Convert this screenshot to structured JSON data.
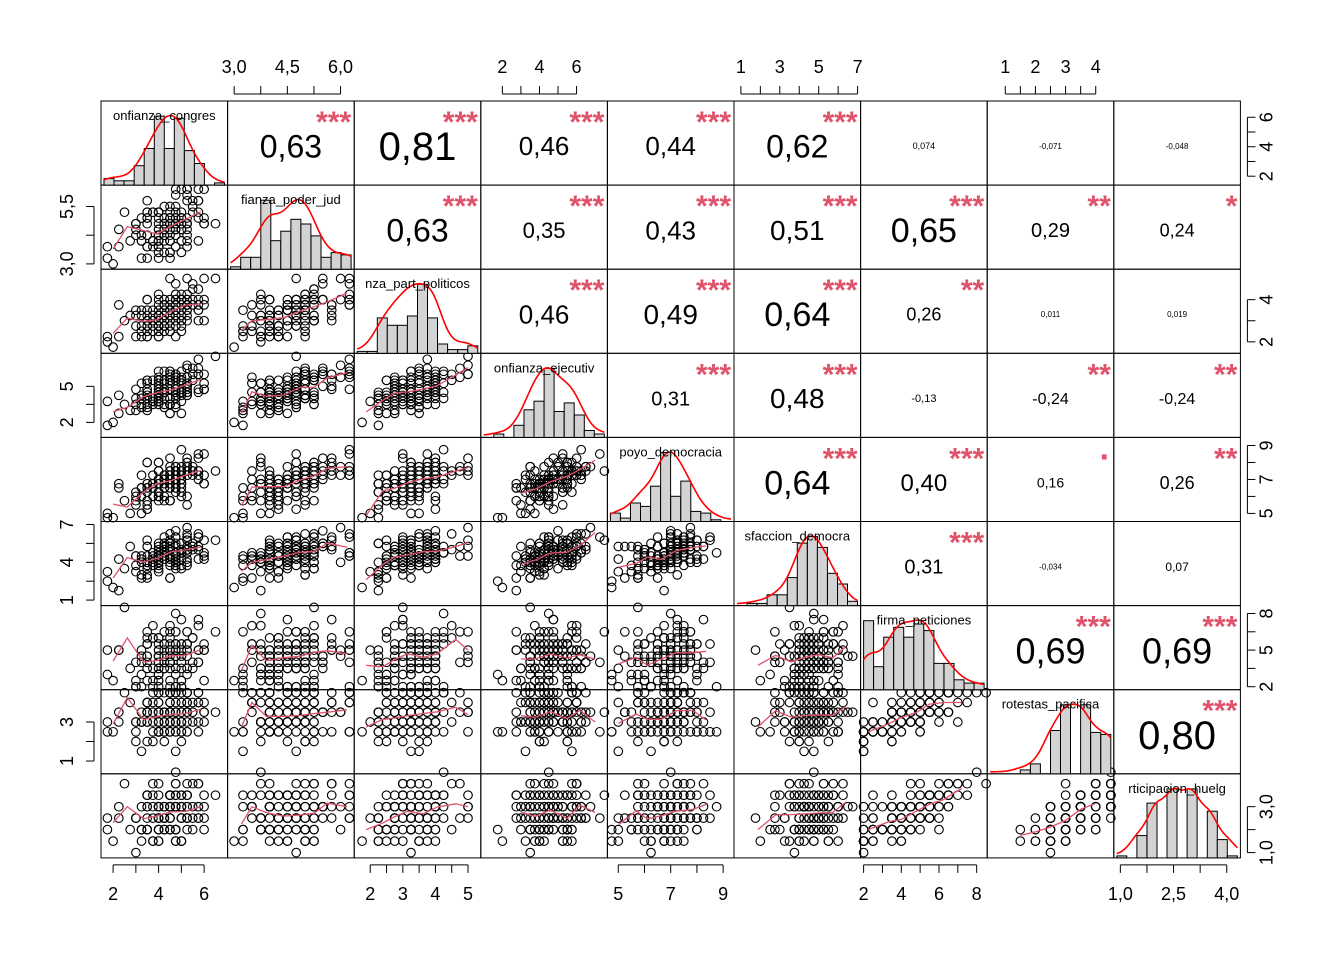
{
  "chart_data": {
    "type": "scatter-matrix",
    "variables": [
      "confianza_congreso",
      "confianza_poder_judicial",
      "confianza_partidos_politicos",
      "confianza_ejecutivo",
      "apoyo_democracia",
      "satisfaccion_democracia",
      "firma_peticiones",
      "protestas_pacificas",
      "participacion_huelgas"
    ],
    "diag_labels": [
      "onfianza_congres",
      "fianza_poder_jud",
      "nza_part_politicos",
      "onfianza_ejecutiv",
      "poyo_democracia",
      "sfaccion_democra",
      "firma_peticiones",
      "rotestas_pacifica",
      "rticipacion_huelg"
    ],
    "ranges": [
      [
        1.6,
        6.9
      ],
      [
        2.9,
        6.3
      ],
      [
        1.6,
        5.3
      ],
      [
        1.0,
        7.5
      ],
      [
        4.7,
        9.3
      ],
      [
        0.8,
        7.0
      ],
      [
        2.0,
        8.4
      ],
      [
        0.5,
        4.5
      ],
      [
        0.9,
        4.3
      ]
    ],
    "axis_ticks": {
      "top": [
        {
          "col": 1,
          "ticks": [
            "3,0",
            "4,5",
            "6,0"
          ],
          "values": [
            3.0,
            4.5,
            6.0
          ]
        },
        {
          "col": 3,
          "ticks": [
            "2",
            "4",
            "6"
          ],
          "values": [
            2,
            4,
            6
          ]
        },
        {
          "col": 5,
          "ticks": [
            "1",
            "3",
            "5",
            "7"
          ],
          "values": [
            1,
            3,
            5,
            7
          ]
        },
        {
          "col": 7,
          "ticks": [
            "1",
            "2",
            "3",
            "4"
          ],
          "values": [
            1,
            2,
            3,
            4
          ]
        }
      ],
      "bottom": [
        {
          "col": 0,
          "ticks": [
            "2",
            "4",
            "6"
          ],
          "values": [
            2,
            4,
            6
          ]
        },
        {
          "col": 2,
          "ticks": [
            "2",
            "3",
            "4",
            "5"
          ],
          "values": [
            2,
            3,
            4,
            5
          ]
        },
        {
          "col": 4,
          "ticks": [
            "5",
            "7",
            "9"
          ],
          "values": [
            5,
            7,
            9
          ]
        },
        {
          "col": 6,
          "ticks": [
            "2",
            "4",
            "6",
            "8"
          ],
          "values": [
            2,
            4,
            6,
            8
          ]
        },
        {
          "col": 8,
          "ticks": [
            "1,0",
            "2,5",
            "4,0"
          ],
          "values": [
            1.0,
            2.5,
            4.0
          ]
        }
      ],
      "left": [
        {
          "row": 1,
          "ticks": [
            "3,0",
            "5,5"
          ],
          "values": [
            3.0,
            5.5
          ]
        },
        {
          "row": 3,
          "ticks": [
            "2",
            "5"
          ],
          "values": [
            2,
            5
          ]
        },
        {
          "row": 5,
          "ticks": [
            "1",
            "4",
            "7"
          ],
          "values": [
            1,
            4,
            7
          ]
        },
        {
          "row": 7,
          "ticks": [
            "1",
            "3"
          ],
          "values": [
            1,
            3
          ]
        }
      ],
      "right": [
        {
          "row": 0,
          "ticks": [
            "2",
            "4",
            "6"
          ],
          "values": [
            2,
            4,
            6
          ]
        },
        {
          "row": 2,
          "ticks": [
            "2",
            "4"
          ],
          "values": [
            2,
            4
          ]
        },
        {
          "row": 4,
          "ticks": [
            "5",
            "7",
            "9"
          ],
          "values": [
            5,
            7,
            9
          ]
        },
        {
          "row": 6,
          "ticks": [
            "2",
            "5",
            "8"
          ],
          "values": [
            2,
            5,
            8
          ]
        },
        {
          "row": 8,
          "ticks": [
            "1,0",
            "3,0"
          ],
          "values": [
            1.0,
            3.0
          ]
        }
      ]
    },
    "correlations": [
      {
        "row": 0,
        "col": 1,
        "label": "0,63",
        "stars": "***",
        "size": 32
      },
      {
        "row": 0,
        "col": 2,
        "label": "0,81",
        "stars": "***",
        "size": 40
      },
      {
        "row": 0,
        "col": 3,
        "label": "0,46",
        "stars": "***",
        "size": 26
      },
      {
        "row": 0,
        "col": 4,
        "label": "0,44",
        "stars": "***",
        "size": 26
      },
      {
        "row": 0,
        "col": 5,
        "label": "0,62",
        "stars": "***",
        "size": 32
      },
      {
        "row": 0,
        "col": 6,
        "label": "0,074",
        "stars": "",
        "size": 9
      },
      {
        "row": 0,
        "col": 7,
        "label": "-0,071",
        "stars": "",
        "size": 8
      },
      {
        "row": 0,
        "col": 8,
        "label": "-0,048",
        "stars": "",
        "size": 8
      },
      {
        "row": 1,
        "col": 2,
        "label": "0,63",
        "stars": "***",
        "size": 32
      },
      {
        "row": 1,
        "col": 3,
        "label": "0,35",
        "stars": "***",
        "size": 22
      },
      {
        "row": 1,
        "col": 4,
        "label": "0,43",
        "stars": "***",
        "size": 26
      },
      {
        "row": 1,
        "col": 5,
        "label": "0,51",
        "stars": "***",
        "size": 28
      },
      {
        "row": 1,
        "col": 6,
        "label": "0,65",
        "stars": "***",
        "size": 34
      },
      {
        "row": 1,
        "col": 7,
        "label": "0,29",
        "stars": "**",
        "size": 20
      },
      {
        "row": 1,
        "col": 8,
        "label": "0,24",
        "stars": "*",
        "size": 18
      },
      {
        "row": 2,
        "col": 3,
        "label": "0,46",
        "stars": "***",
        "size": 26
      },
      {
        "row": 2,
        "col": 4,
        "label": "0,49",
        "stars": "***",
        "size": 28
      },
      {
        "row": 2,
        "col": 5,
        "label": "0,64",
        "stars": "***",
        "size": 34
      },
      {
        "row": 2,
        "col": 6,
        "label": "0,26",
        "stars": "**",
        "size": 18
      },
      {
        "row": 2,
        "col": 7,
        "label": "0,011",
        "stars": "",
        "size": 8
      },
      {
        "row": 2,
        "col": 8,
        "label": "0,019",
        "stars": "",
        "size": 8
      },
      {
        "row": 3,
        "col": 4,
        "label": "0,31",
        "stars": "***",
        "size": 20
      },
      {
        "row": 3,
        "col": 5,
        "label": "0,48",
        "stars": "***",
        "size": 28
      },
      {
        "row": 3,
        "col": 6,
        "label": "-0,13",
        "stars": "",
        "size": 11
      },
      {
        "row": 3,
        "col": 7,
        "label": "-0,24",
        "stars": "**",
        "size": 16
      },
      {
        "row": 3,
        "col": 8,
        "label": "-0,24",
        "stars": "**",
        "size": 16
      },
      {
        "row": 4,
        "col": 5,
        "label": "0,64",
        "stars": "***",
        "size": 34
      },
      {
        "row": 4,
        "col": 6,
        "label": "0,40",
        "stars": "***",
        "size": 24
      },
      {
        "row": 4,
        "col": 7,
        "label": "0,16",
        "stars": "·",
        "size": 14
      },
      {
        "row": 4,
        "col": 8,
        "label": "0,26",
        "stars": "**",
        "size": 18
      },
      {
        "row": 5,
        "col": 6,
        "label": "0,31",
        "stars": "***",
        "size": 20
      },
      {
        "row": 5,
        "col": 7,
        "label": "-0,034",
        "stars": "",
        "size": 8
      },
      {
        "row": 5,
        "col": 8,
        "label": "0,07",
        "stars": "",
        "size": 12
      },
      {
        "row": 6,
        "col": 7,
        "label": "0,69",
        "stars": "***",
        "size": 36
      },
      {
        "row": 6,
        "col": 8,
        "label": "0,69",
        "stars": "***",
        "size": 36
      },
      {
        "row": 7,
        "col": 8,
        "label": "0,80",
        "stars": "***",
        "size": 40
      }
    ],
    "colors": {
      "stars": "#DF536B",
      "density": "#FF0000",
      "smooth": "#DF536B",
      "points": "#000000",
      "hist_fill": "#D3D3D3",
      "frame": "#000000"
    }
  }
}
